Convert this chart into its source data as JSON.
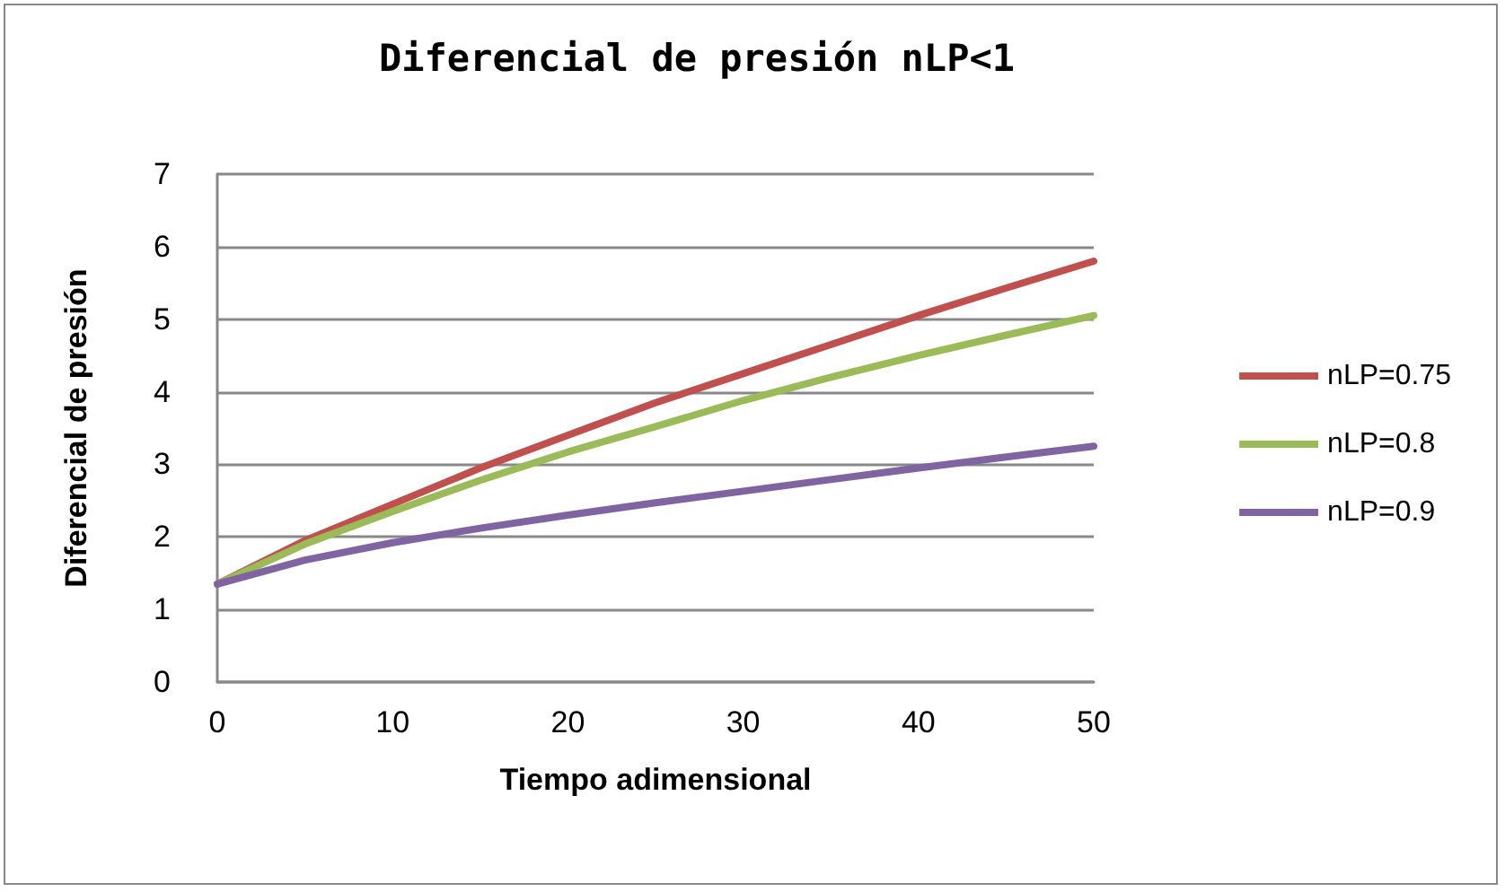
{
  "chart_data": {
    "type": "line",
    "title": "Diferencial de presión nLP<1",
    "xlabel": "Tiempo adimensional",
    "ylabel": "Diferencial de presión",
    "x": [
      0,
      5,
      10,
      15,
      20,
      25,
      30,
      35,
      40,
      45,
      50
    ],
    "series": [
      {
        "name": "nLP=0.75",
        "color": "#c0504d",
        "values": [
          1.35,
          1.95,
          2.45,
          2.95,
          3.4,
          3.85,
          4.25,
          4.65,
          5.05,
          5.43,
          5.8
        ]
      },
      {
        "name": "nLP=0.8",
        "color": "#9bbb59",
        "values": [
          1.35,
          1.9,
          2.35,
          2.78,
          3.17,
          3.52,
          3.88,
          4.2,
          4.5,
          4.78,
          5.05
        ]
      },
      {
        "name": "nLP=0.9",
        "color": "#8064a2",
        "values": [
          1.35,
          1.68,
          1.92,
          2.12,
          2.3,
          2.47,
          2.63,
          2.79,
          2.95,
          3.1,
          3.25
        ]
      }
    ],
    "xlim": [
      0,
      50
    ],
    "xticks": [
      0,
      10,
      20,
      30,
      40,
      50
    ],
    "ylim": [
      0,
      7
    ],
    "yticks": [
      0,
      1,
      2,
      3,
      4,
      5,
      6,
      7
    ],
    "grid": "y",
    "legend": "right",
    "marker": "none",
    "line_style": "solid"
  }
}
